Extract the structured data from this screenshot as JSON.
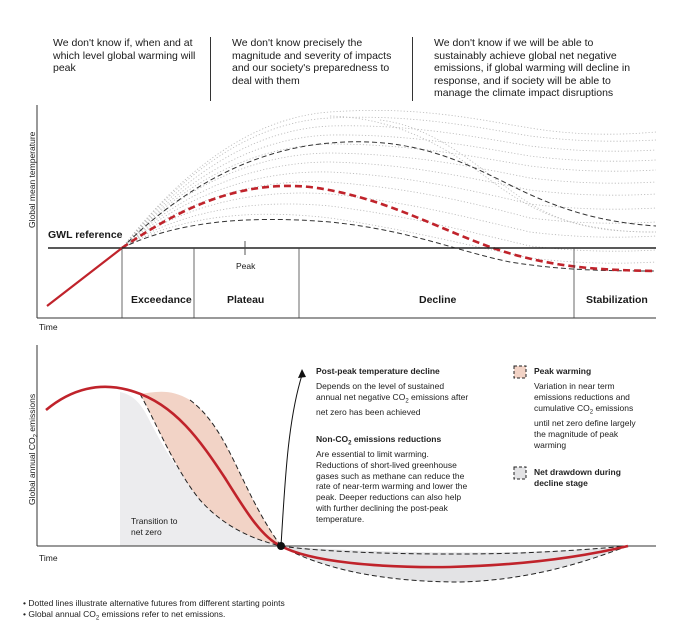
{
  "headers": [
    "We don't know if, when and at which level global warming will peak",
    "We don't know precisely the magnitude and severity of impacts and our society's preparedness to deal with them",
    "We don't know if we will be able to sustainably achieve global net negative emissions, if global warming will decline in response, and if society will be able to manage the climate impact disruptions"
  ],
  "top_panel": {
    "y_axis_label": "Global mean temperature",
    "x_axis_label": "Time",
    "reference_label": "GWL reference",
    "peak_label": "Peak",
    "phases": [
      "Exceedance",
      "Plateau",
      "Decline",
      "Stabilization"
    ]
  },
  "bottom_panel": {
    "y_axis_label_pre": "Global annual CO",
    "y_axis_label_sub": "2",
    "y_axis_label_post": " emissions",
    "x_axis_label": "Time",
    "transition_label_line1": "Transition to",
    "transition_label_line2": "net zero"
  },
  "annotations": {
    "post_peak_title": "Post-peak temperature decline",
    "post_peak_l1": "Depends on the level of sustained",
    "post_peak_l2_pre": "annual net negative CO",
    "post_peak_l2_sub": "2",
    "post_peak_l2_post": " emissions after",
    "post_peak_l3": "net zero has been achieved",
    "nonco2_title_pre": "Non-CO",
    "nonco2_title_sub": "2",
    "nonco2_title_post": " emissions reductions",
    "nonco2_lines": [
      "Are essential to limit warming.",
      "Reductions of short-lived greenhouse",
      "gases such as methane can reduce the",
      "rate of near-term warming and lower the",
      "peak. Deeper reductions can also help",
      "with further declining the post-peak",
      "temperature."
    ]
  },
  "legend": {
    "peak_warming_title": "Peak warming",
    "peak_warming_l1": "Variation in near term",
    "peak_warming_l2": "emissions reductions and",
    "peak_warming_l3_pre": "cumulative CO",
    "peak_warming_l3_sub": "2",
    "peak_warming_l3_post": " emissions",
    "peak_warming_l4": "until net zero define largely",
    "peak_warming_l5": "the magnitude of peak",
    "peak_warming_l6": "warming",
    "drawdown_title_l1": "Net drawdown during",
    "drawdown_title_l2": "decline stage"
  },
  "footnotes": {
    "note1": "Dotted lines illustrate alternative futures from different starting points",
    "note2_pre": "Global annual CO",
    "note2_sub": "2",
    "note2_post": " emissions refer to net emissions."
  },
  "colors": {
    "red": "#c0232b",
    "peak_fill": "#f2d3c6",
    "drawdown_fill": "#e3e3e5",
    "transition_fill": "#ececee",
    "dotted_gray": "#b5b5b5"
  }
}
